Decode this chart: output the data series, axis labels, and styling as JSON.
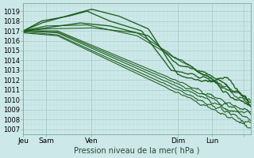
{
  "xlabel": "Pression niveau de la mer( hPa )",
  "ylim": [
    1006.5,
    1019.8
  ],
  "yticks": [
    1007,
    1008,
    1009,
    1010,
    1011,
    1012,
    1013,
    1014,
    1015,
    1016,
    1017,
    1018,
    1019
  ],
  "xtick_labels": [
    "Jeu",
    "Sam",
    "Ven",
    "Dim",
    "Lun",
    ""
  ],
  "xtick_positions": [
    0.0,
    0.1,
    0.3,
    0.68,
    0.83,
    0.97
  ],
  "bg_color": "#cce8e8",
  "grid_major_color": "#aacccc",
  "grid_minor_color": "#bbdddd",
  "line_color": "#1a5c1a"
}
